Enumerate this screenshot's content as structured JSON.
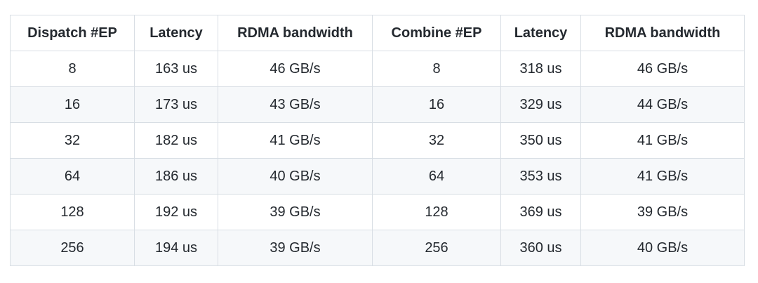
{
  "table": {
    "columns": [
      "Dispatch #EP",
      "Latency",
      "RDMA bandwidth",
      "Combine #EP",
      "Latency",
      "RDMA bandwidth"
    ],
    "rows": [
      [
        "8",
        "163 us",
        "46 GB/s",
        "8",
        "318 us",
        "46 GB/s"
      ],
      [
        "16",
        "173 us",
        "43 GB/s",
        "16",
        "329 us",
        "44 GB/s"
      ],
      [
        "32",
        "182 us",
        "41 GB/s",
        "32",
        "350 us",
        "41 GB/s"
      ],
      [
        "64",
        "186 us",
        "40 GB/s",
        "64",
        "353 us",
        "41 GB/s"
      ],
      [
        "128",
        "192 us",
        "39 GB/s",
        "128",
        "369 us",
        "39 GB/s"
      ],
      [
        "256",
        "194 us",
        "39 GB/s",
        "256",
        "360 us",
        "40 GB/s"
      ]
    ]
  },
  "colors": {
    "border": "#d8dee4",
    "row_alternate_bg": "#f6f8fa",
    "text": "#24292f",
    "background": "#ffffff"
  },
  "chart_data": {
    "type": "table",
    "title": "",
    "columns": [
      "Dispatch #EP",
      "Latency",
      "RDMA bandwidth",
      "Combine #EP",
      "Latency",
      "RDMA bandwidth"
    ],
    "rows": [
      [
        "8",
        "163 us",
        "46 GB/s",
        "8",
        "318 us",
        "46 GB/s"
      ],
      [
        "16",
        "173 us",
        "43 GB/s",
        "16",
        "329 us",
        "44 GB/s"
      ],
      [
        "32",
        "182 us",
        "41 GB/s",
        "32",
        "350 us",
        "41 GB/s"
      ],
      [
        "64",
        "186 us",
        "40 GB/s",
        "64",
        "353 us",
        "41 GB/s"
      ],
      [
        "128",
        "192 us",
        "39 GB/s",
        "128",
        "369 us",
        "39 GB/s"
      ],
      [
        "256",
        "194 us",
        "39 GB/s",
        "256",
        "360 us",
        "40 GB/s"
      ]
    ],
    "series": [
      {
        "name": "Dispatch Latency (us)",
        "x": [
          8,
          16,
          32,
          64,
          128,
          256
        ],
        "values": [
          163,
          173,
          182,
          186,
          192,
          194
        ]
      },
      {
        "name": "Dispatch RDMA bandwidth (GB/s)",
        "x": [
          8,
          16,
          32,
          64,
          128,
          256
        ],
        "values": [
          46,
          43,
          41,
          40,
          39,
          39
        ]
      },
      {
        "name": "Combine Latency (us)",
        "x": [
          8,
          16,
          32,
          64,
          128,
          256
        ],
        "values": [
          318,
          329,
          350,
          353,
          369,
          360
        ]
      },
      {
        "name": "Combine RDMA bandwidth (GB/s)",
        "x": [
          8,
          16,
          32,
          64,
          128,
          256
        ],
        "values": [
          46,
          44,
          41,
          41,
          39,
          40
        ]
      }
    ]
  }
}
